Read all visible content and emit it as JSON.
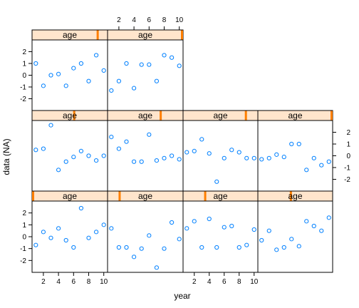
{
  "chart_data": {
    "type": "scatter",
    "layout": "lattice 4 columns x 3 rows, panels filled from bottom-left",
    "xlabel": "year",
    "ylabel": "data (NA)",
    "strip_label": "age",
    "xlim": [
      0.5,
      10.5
    ],
    "ylim": [
      -3,
      3
    ],
    "x_ticks": [
      2,
      4,
      6,
      8,
      10
    ],
    "y_ticks": [
      -2,
      -1,
      0,
      1,
      2
    ],
    "colors": {
      "point": "#0080ff",
      "strip_fill": "#ffe5cc",
      "strip_marker": "#ff7f00",
      "frame": "#000000"
    },
    "x": [
      1,
      2,
      3,
      4,
      5,
      6,
      7,
      8,
      9,
      10
    ],
    "panels": [
      {
        "strip_level": 0.0,
        "y": [
          -0.7,
          0.4,
          -0.1,
          0.7,
          -0.3,
          -0.9,
          2.4,
          -0.1,
          0.4,
          1.0
        ]
      },
      {
        "strip_level": 0.15,
        "y": [
          0.7,
          -0.9,
          -0.9,
          -1.7,
          -1.0,
          0.1,
          -2.6,
          -1.0,
          1.2,
          -0.2
        ]
      },
      {
        "strip_level": 0.29,
        "y": [
          0.7,
          1.3,
          -0.9,
          1.5,
          -0.9,
          0.8,
          0.9,
          -0.9,
          -0.7,
          0.6
        ]
      },
      {
        "strip_level": 0.44,
        "y": [
          -0.3,
          0.5,
          -1.1,
          -0.9,
          -0.2,
          -0.8,
          1.3,
          0.9,
          0.5,
          1.6
        ]
      },
      {
        "strip_level": 0.56,
        "y": [
          0.5,
          0.6,
          2.6,
          -1.2,
          -0.5,
          -0.1,
          0.4,
          0.0,
          -0.4,
          0.0
        ]
      },
      {
        "strip_level": 0.71,
        "y": [
          1.6,
          0.6,
          1.2,
          -0.5,
          -0.5,
          1.8,
          -0.4,
          -0.2,
          0.0,
          -0.3
        ]
      },
      {
        "strip_level": 0.85,
        "y": [
          0.3,
          0.4,
          1.4,
          0.2,
          -2.2,
          -0.2,
          0.5,
          0.3,
          -0.2,
          -0.2
        ]
      },
      {
        "strip_level": 1.0,
        "y": [
          -0.3,
          -0.2,
          0.1,
          -0.1,
          1.0,
          1.0,
          -1.2,
          -0.2,
          -0.8,
          -0.5
        ]
      },
      {
        "strip_level": 0.88,
        "y": [
          1.0,
          -0.9,
          0.0,
          0.1,
          -0.9,
          0.6,
          1.0,
          -0.5,
          1.7,
          0.4
        ]
      },
      {
        "strip_level": 1.0,
        "y": [
          -1.3,
          -0.5,
          1.0,
          -1.1,
          0.9,
          0.9,
          -0.5,
          1.7,
          1.5,
          0.8
        ]
      }
    ]
  }
}
